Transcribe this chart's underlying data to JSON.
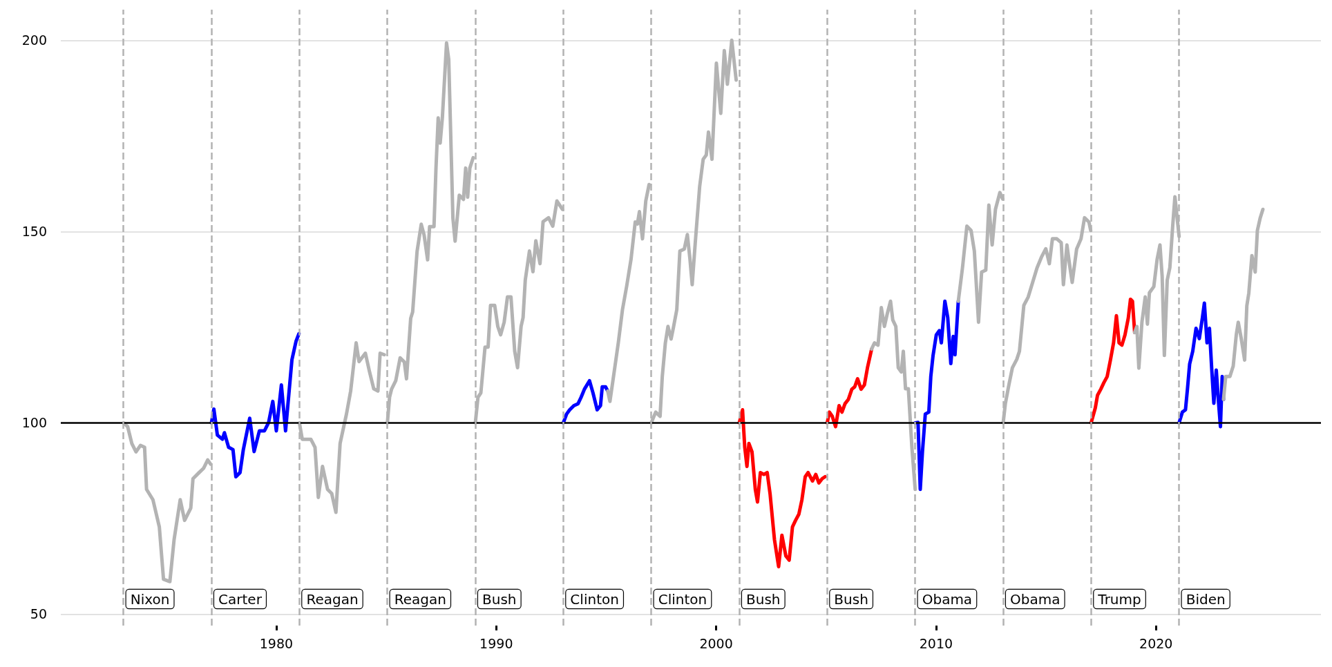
{
  "chart_data": {
    "type": "line",
    "xlim": [
      1970.2,
      2027.5
    ],
    "xticks": [
      1980,
      1990,
      2000,
      2010,
      2020
    ],
    "ylim": [
      47,
      208
    ],
    "yticks": [
      50,
      100,
      150,
      200
    ],
    "grid": "y",
    "marker": "none",
    "line_style": "solid",
    "ref_lines": [
      {
        "axis": "y",
        "value": 100,
        "color": "#000000",
        "line_style": "solid"
      },
      {
        "axis": "x",
        "value": 1973.05,
        "label": "Nixon",
        "color": "#b3b3b3",
        "line_style": "dashed"
      },
      {
        "axis": "x",
        "value": 1977.05,
        "label": "Carter",
        "color": "#b3b3b3",
        "line_style": "dashed"
      },
      {
        "axis": "x",
        "value": 1981.05,
        "label": "Reagan",
        "color": "#b3b3b3",
        "line_style": "dashed"
      },
      {
        "axis": "x",
        "value": 1985.05,
        "label": "Reagan",
        "color": "#b3b3b3",
        "line_style": "dashed"
      },
      {
        "axis": "x",
        "value": 1989.05,
        "label": "Bush",
        "color": "#b3b3b3",
        "line_style": "dashed"
      },
      {
        "axis": "x",
        "value": 1993.05,
        "label": "Clinton",
        "color": "#b3b3b3",
        "line_style": "dashed"
      },
      {
        "axis": "x",
        "value": 1997.05,
        "label": "Clinton",
        "color": "#b3b3b3",
        "line_style": "dashed"
      },
      {
        "axis": "x",
        "value": 2001.05,
        "label": "Bush",
        "color": "#b3b3b3",
        "line_style": "dashed"
      },
      {
        "axis": "x",
        "value": 2005.05,
        "label": "Bush",
        "color": "#b3b3b3",
        "line_style": "dashed"
      },
      {
        "axis": "x",
        "value": 2009.05,
        "label": "Obama",
        "color": "#b3b3b3",
        "line_style": "dashed"
      },
      {
        "axis": "x",
        "value": 2013.05,
        "label": "Obama",
        "color": "#b3b3b3",
        "line_style": "dashed"
      },
      {
        "axis": "x",
        "value": 2017.05,
        "label": "Trump",
        "color": "#b3b3b3",
        "line_style": "dashed"
      },
      {
        "axis": "x",
        "value": 2021.05,
        "label": "Biden",
        "color": "#b3b3b3",
        "line_style": "dashed"
      }
    ],
    "series": [
      {
        "color": "#b3b3b3",
        "x": [
          1973.05,
          1973.24,
          1973.43,
          1973.62,
          1973.82,
          1974.01,
          1974.1,
          1974.39,
          1974.68,
          1974.87,
          1975.16,
          1975.35,
          1975.63,
          1975.83,
          1976.11,
          1976.21,
          1976.49,
          1976.69,
          1976.88,
          1977.01
        ],
        "values": [
          100,
          99,
          94.6,
          92.4,
          94.1,
          93.6,
          82.6,
          79.9,
          72.8,
          59.1,
          58.5,
          69.4,
          79.9,
          74.5,
          77.7,
          85.4,
          87,
          88.1,
          90.3,
          89.2
        ]
      },
      {
        "color": "#0000ff",
        "x": [
          1977.05,
          1977.16,
          1977.32,
          1977.55,
          1977.64,
          1977.83,
          1978.03,
          1978.16,
          1978.35,
          1978.5,
          1978.79,
          1978.99,
          1979.23,
          1979.46,
          1979.65,
          1979.84,
          1980,
          1980.23,
          1980.42,
          1980.71,
          1980.9,
          1981.03
        ],
        "values": [
          100,
          103.6,
          96.8,
          95.7,
          97.4,
          93.6,
          93,
          85.9,
          87,
          93,
          101.2,
          92.5,
          97.9,
          97.9,
          100.1,
          105.6,
          97.9,
          109.9,
          97.9,
          116.5,
          121.4,
          123.3
        ]
      },
      {
        "color": "#b3b3b3",
        "x": [
          1981.05,
          1981.18,
          1981.38,
          1981.57,
          1981.76,
          1981.91,
          1982.1,
          1982.33,
          1982.52,
          1982.71,
          1982.9,
          1983.19,
          1983.38,
          1983.63,
          1983.76,
          1984.05,
          1984.24,
          1984.43,
          1984.62,
          1984.72,
          1984.91
        ],
        "values": [
          100,
          95.7,
          95.7,
          95.7,
          93.6,
          80.5,
          88.6,
          82.6,
          81.5,
          76.6,
          94.6,
          102.3,
          108.3,
          120.9,
          116,
          118.2,
          113.3,
          108.9,
          108.3,
          118.2,
          117.8
        ]
      },
      {
        "color": "#b3b3b3",
        "x": [
          1985.05,
          1985.15,
          1985.24,
          1985.43,
          1985.63,
          1985.82,
          1985.92,
          1986.11,
          1986.2,
          1986.4,
          1986.59,
          1986.72,
          1986.88,
          1986.97,
          1987.17,
          1987.26,
          1987.36,
          1987.45,
          1987.55,
          1987.74,
          1987.84,
          1988.03,
          1988.13,
          1988.32,
          1988.51,
          1988.61,
          1988.7,
          1988.8,
          1988.95
        ],
        "values": [
          100,
          106.7,
          108.8,
          111,
          117,
          115.9,
          111.5,
          127.3,
          129,
          144.8,
          151.9,
          149.1,
          142.6,
          151.3,
          151.3,
          166.6,
          179.7,
          173.1,
          179.7,
          199.3,
          195,
          153.5,
          147.5,
          159.5,
          158.4,
          166.6,
          159,
          166.6,
          169.3
        ]
      },
      {
        "color": "#b3b3b3",
        "x": [
          1989.05,
          1989.17,
          1989.3,
          1989.49,
          1989.63,
          1989.74,
          1989.93,
          1990.07,
          1990.2,
          1990.36,
          1990.51,
          1990.67,
          1990.84,
          1990.97,
          1991.13,
          1991.22,
          1991.32,
          1991.51,
          1991.67,
          1991.8,
          1991.99,
          1992.13,
          1992.38,
          1992.57,
          1992.76,
          1993.01
        ],
        "values": [
          100,
          106.7,
          107.8,
          119.8,
          119.8,
          130.7,
          130.7,
          125.2,
          123,
          126.3,
          132.9,
          132.9,
          118.7,
          114.4,
          125.2,
          127.5,
          137.3,
          144.9,
          139.5,
          147.6,
          141.6,
          152.6,
          153.6,
          151.4,
          158,
          155.8
        ]
      },
      {
        "color": "#0000ff",
        "x": [
          1993.05,
          1993.2,
          1993.34,
          1993.53,
          1993.72,
          1993.86,
          1994.01,
          1994.24,
          1994.4,
          1994.59,
          1994.74,
          1994.82,
          1994.97,
          1995.07
        ],
        "values": [
          100,
          102.3,
          103.4,
          104.5,
          105,
          106.7,
          108.8,
          111,
          107.8,
          103.4,
          104.5,
          109.4,
          109.4,
          108.3
        ]
      },
      {
        "color": "#b3b3b3",
        "x": [
          1995.07,
          1995.17,
          1995.36,
          1995.55,
          1995.74,
          1995.93,
          1996.13,
          1996.32,
          1996.42,
          1996.51,
          1996.65,
          1996.8,
          1996.95
        ],
        "values": [
          108.3,
          105.6,
          113.2,
          120.9,
          129.6,
          135.7,
          142.8,
          152.5,
          152,
          155.2,
          148.1,
          158,
          162.3
        ]
      },
      {
        "color": "#b3b3b3",
        "x": [
          1997.05,
          1997.25,
          1997.45,
          1997.55,
          1997.69,
          1997.81,
          1997.95,
          1998.05,
          1998.21,
          1998.35,
          1998.55,
          1998.69,
          1998.81,
          1998.91,
          1999.05,
          1999.25,
          1999.41,
          1999.55,
          1999.65,
          1999.81,
          2000.01,
          2000.21,
          2000.37,
          2000.51,
          2000.71,
          2000.91
        ],
        "values": [
          100,
          102.8,
          101.7,
          112.1,
          120.9,
          125.2,
          121.9,
          124.7,
          129.6,
          144.9,
          145.4,
          149.2,
          142.7,
          136.1,
          147.1,
          161.8,
          168.9,
          170,
          176,
          168.9,
          194,
          180.9,
          197.3,
          188.5,
          200,
          189.6
        ]
      },
      {
        "color": "#ff0000",
        "x": [
          2001.05,
          2001.2,
          2001.3,
          2001.4,
          2001.49,
          2001.63,
          2001.78,
          2001.88,
          2002.01,
          2002.17,
          2002.32,
          2002.45,
          2002.65,
          2002.84,
          2002.99,
          2003.17,
          2003.32,
          2003.47,
          2003.61,
          2003.76,
          2003.9,
          2004.05,
          2004.18,
          2004.38,
          2004.53,
          2004.67,
          2004.82,
          2004.95
        ],
        "values": [
          100,
          103.4,
          93.6,
          88.6,
          94.6,
          92.4,
          82.6,
          79.3,
          87,
          86.5,
          87,
          81.5,
          69.5,
          62.4,
          70.6,
          65.2,
          64.1,
          72.8,
          74.5,
          76.1,
          79.9,
          85.9,
          87,
          84.8,
          86.5,
          84.3,
          85.4,
          85.9
        ]
      },
      {
        "color": "#ff0000",
        "x": [
          2005.05,
          2005.15,
          2005.28,
          2005.43,
          2005.59,
          2005.72,
          2005.86,
          2006.01,
          2006.17,
          2006.3,
          2006.43,
          2006.59,
          2006.74,
          2006.88,
          2007.07
        ],
        "values": [
          100,
          102.8,
          101.7,
          99,
          104.5,
          102.8,
          105,
          106.1,
          108.8,
          109.4,
          111.5,
          108.8,
          109.9,
          114.4,
          119.3
        ]
      },
      {
        "color": "#b3b3b3",
        "x": [
          2007.07,
          2007.2,
          2007.36,
          2007.51,
          2007.65,
          2007.78,
          2007.93,
          2008.03,
          2008.17,
          2008.28,
          2008.42,
          2008.51,
          2008.61,
          2008.74,
          2008.9,
          2009.05
        ],
        "values": [
          119.3,
          120.9,
          120.3,
          130.1,
          125.2,
          128.5,
          131.8,
          126.9,
          125.2,
          114.4,
          113.3,
          118.7,
          108.9,
          108.9,
          93.6,
          82.6
        ]
      },
      {
        "color": "#0000ff",
        "x": [
          2009.05,
          2009.18,
          2009.28,
          2009.38,
          2009.51,
          2009.67,
          2009.76,
          2009.86,
          2010.01,
          2010.15,
          2010.24,
          2010.4,
          2010.53,
          2010.67,
          2010.78,
          2010.86,
          2011.01
        ],
        "values": [
          100,
          100.1,
          82.6,
          92.4,
          102.3,
          102.8,
          112.1,
          117.5,
          123,
          124.1,
          120.9,
          131.8,
          127.5,
          115.5,
          122.6,
          117.8,
          131.8
        ]
      },
      {
        "color": "#b3b3b3",
        "x": [
          2011.01,
          2011.2,
          2011.4,
          2011.59,
          2011.74,
          2011.93,
          2012.07,
          2012.26,
          2012.4,
          2012.55,
          2012.7,
          2012.9,
          2013.03
        ],
        "values": [
          131.8,
          140.5,
          151.4,
          150.3,
          144.9,
          126.3,
          139.4,
          139.9,
          156.9,
          146.5,
          155.8,
          160.2,
          158.5
        ]
      },
      {
        "color": "#b3b3b3",
        "x": [
          2013.05,
          2013.15,
          2013.31,
          2013.47,
          2013.67,
          2013.79,
          2013.99,
          2014.19,
          2014.39,
          2014.59,
          2014.79,
          2014.99,
          2015.15,
          2015.29,
          2015.49,
          2015.69,
          2015.79,
          2015.95,
          2016.09,
          2016.19,
          2016.39,
          2016.59,
          2016.75,
          2016.95,
          2017.03
        ],
        "values": [
          100,
          105,
          109.9,
          114.4,
          116.6,
          118.7,
          130.7,
          132.9,
          136.7,
          140.5,
          143.3,
          145.5,
          141.6,
          148.1,
          148.1,
          147.1,
          136.1,
          146.5,
          140.5,
          136.7,
          145.4,
          148.1,
          153.6,
          152.5,
          150.3
        ]
      },
      {
        "color": "#ff0000",
        "x": [
          2017.05,
          2017.24,
          2017.34,
          2017.49,
          2017.63,
          2017.78,
          2017.93,
          2018.07,
          2018.2,
          2018.32,
          2018.45,
          2018.59,
          2018.74,
          2018.84,
          2018.93,
          2019.03
        ],
        "values": [
          100,
          103.9,
          107.2,
          108.8,
          110.5,
          112.1,
          116.5,
          120.9,
          128,
          120.9,
          120.3,
          123,
          127.4,
          132.3,
          131.8,
          123.6
        ]
      },
      {
        "color": "#b3b3b3",
        "x": [
          2019.03,
          2019.13,
          2019.22,
          2019.36,
          2019.51,
          2019.61,
          2019.7,
          2019.9,
          2020.05,
          2020.18,
          2020.28,
          2020.38,
          2020.51,
          2020.63,
          2020.76,
          2020.86,
          2021.05
        ],
        "values": [
          123.6,
          125.2,
          114.3,
          126.3,
          132.9,
          125.8,
          134,
          135.6,
          142.7,
          146.5,
          138.3,
          117.6,
          137.3,
          140.6,
          151.5,
          159.1,
          148.7
        ]
      },
      {
        "color": "#0000ff",
        "x": [
          2021.05,
          2021.2,
          2021.34,
          2021.43,
          2021.53,
          2021.67,
          2021.82,
          2021.97,
          2022.11,
          2022.2,
          2022.32,
          2022.43,
          2022.53,
          2022.63,
          2022.74,
          2022.84,
          2022.93,
          2023.01,
          2023.07
        ],
        "values": [
          100,
          102.8,
          103.4,
          108.8,
          115.4,
          118.7,
          124.7,
          122,
          127.5,
          131.3,
          120.9,
          124.7,
          114.4,
          105.1,
          113.8,
          105.6,
          99,
          112.1,
          106.1
        ]
      },
      {
        "color": "#b3b3b3",
        "x": [
          2023.07,
          2023.17,
          2023.36,
          2023.51,
          2023.65,
          2023.74,
          2023.88,
          2024.03,
          2024.13,
          2024.22,
          2024.36,
          2024.51,
          2024.61,
          2024.74,
          2024.86
        ],
        "values": [
          106.1,
          112.1,
          112.1,
          114.8,
          123,
          126.3,
          121.9,
          116.4,
          130.6,
          133.9,
          143.7,
          139.4,
          150.3,
          153.6,
          155.8
        ]
      }
    ]
  }
}
